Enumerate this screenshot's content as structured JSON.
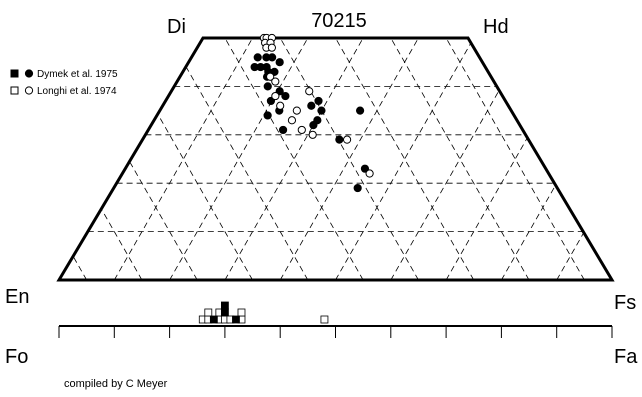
{
  "chart_data": [
    {
      "type": "scatter",
      "subtype": "pyroxene-quadrilateral",
      "title": "70215",
      "corners": {
        "top_left": "Di",
        "top_right": "Hd",
        "bottom_left": "En",
        "bottom_right": "Fs"
      },
      "coordinates": "Wo mol% (0 = En-Fs base, 50 = Di-Hd top), Fs mol% (Fe/(Fe+Mg) x 100 along the base)",
      "grid": "dashed triangular lines every 10 mol%",
      "legend_placement": "top-left",
      "series": [
        {
          "name": "Dymek et al. 1975",
          "marker": "filled",
          "points": [
            {
              "fs": 23,
              "wo": 46
            },
            {
              "fs": 26,
              "wo": 46
            },
            {
              "fs": 28,
              "wo": 46
            },
            {
              "fs": 23,
              "wo": 44
            },
            {
              "fs": 25,
              "wo": 44
            },
            {
              "fs": 27,
              "wo": 44
            },
            {
              "fs": 28,
              "wo": 43
            },
            {
              "fs": 31,
              "wo": 45
            },
            {
              "fs": 30,
              "wo": 43
            },
            {
              "fs": 28,
              "wo": 42
            },
            {
              "fs": 29,
              "wo": 40
            },
            {
              "fs": 33,
              "wo": 39
            },
            {
              "fs": 35,
              "wo": 38
            },
            {
              "fs": 34,
              "wo": 35
            },
            {
              "fs": 31,
              "wo": 37
            },
            {
              "fs": 31,
              "wo": 34
            },
            {
              "fs": 36,
              "wo": 31
            },
            {
              "fs": 43,
              "wo": 36
            },
            {
              "fs": 45,
              "wo": 37
            },
            {
              "fs": 46,
              "wo": 35
            },
            {
              "fs": 45,
              "wo": 33
            },
            {
              "fs": 44,
              "wo": 32
            },
            {
              "fs": 51,
              "wo": 29
            },
            {
              "fs": 57,
              "wo": 35
            },
            {
              "fs": 57,
              "wo": 23
            },
            {
              "fs": 55,
              "wo": 19
            }
          ]
        },
        {
          "name": "Longhi et al. 1974",
          "marker": "open",
          "points": [
            {
              "fs": 23,
              "wo": 50
            },
            {
              "fs": 24,
              "wo": 50
            },
            {
              "fs": 26,
              "wo": 50
            },
            {
              "fs": 24,
              "wo": 49
            },
            {
              "fs": 26,
              "wo": 49
            },
            {
              "fs": 25,
              "wo": 48
            },
            {
              "fs": 27,
              "wo": 48
            },
            {
              "fs": 29,
              "wo": 42
            },
            {
              "fs": 31,
              "wo": 41
            },
            {
              "fs": 32,
              "wo": 38
            },
            {
              "fs": 34,
              "wo": 36
            },
            {
              "fs": 38,
              "wo": 33
            },
            {
              "fs": 39,
              "wo": 35
            },
            {
              "fs": 42,
              "wo": 39
            },
            {
              "fs": 41,
              "wo": 31
            },
            {
              "fs": 44,
              "wo": 30
            },
            {
              "fs": 53,
              "wo": 29
            },
            {
              "fs": 58,
              "wo": 22
            }
          ]
        }
      ]
    },
    {
      "type": "histogram",
      "subtype": "olivine-composition",
      "axis_labels": {
        "left": "Fo",
        "right": "Fa"
      },
      "x_range": [
        0,
        100
      ],
      "tick_step": 10,
      "series": [
        {
          "name": "Dymek et al. 1975",
          "marker": "filled",
          "bins": [
            {
              "fa": 28,
              "count": 1
            },
            {
              "fa": 30,
              "count": 2
            },
            {
              "fa": 32,
              "count": 1
            }
          ]
        },
        {
          "name": "Longhi et al. 1974",
          "marker": "open",
          "bins": [
            {
              "fa": 26,
              "count": 1
            },
            {
              "fa": 27,
              "count": 2
            },
            {
              "fa": 29,
              "count": 2
            },
            {
              "fa": 30,
              "count": 1
            },
            {
              "fa": 31,
              "count": 1
            },
            {
              "fa": 33,
              "count": 2
            },
            {
              "fa": 48,
              "count": 1
            }
          ]
        }
      ]
    }
  ],
  "caption": "compiled by C Meyer",
  "colors": {
    "filled": "#000000",
    "open": "#ffffff",
    "line": "#000000",
    "grid": "#000000"
  }
}
